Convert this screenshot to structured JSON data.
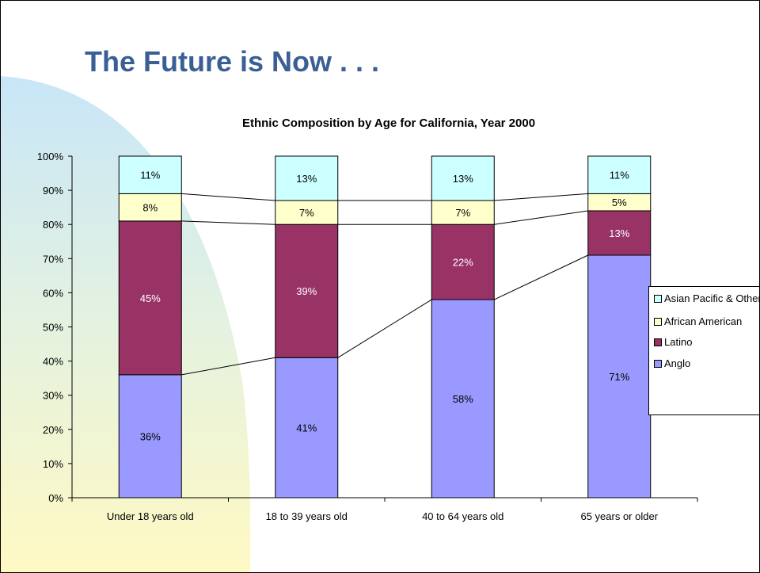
{
  "slide": {
    "title": "The Future is Now . . ."
  },
  "chart_data": {
    "type": "bar",
    "stacked": true,
    "title": "Ethnic Composition by Age for California, Year 2000",
    "categories": [
      "Under 18 years old",
      "18 to 39 years old",
      "40 to 64 years old",
      "65 years or older"
    ],
    "ylim": [
      0,
      100
    ],
    "yticks": [
      "0%",
      "10%",
      "20%",
      "30%",
      "40%",
      "50%",
      "60%",
      "70%",
      "80%",
      "90%",
      "100%"
    ],
    "grid": false,
    "series_lines": true,
    "legend_position": "right",
    "series": [
      {
        "name": "Anglo",
        "values": [
          36,
          41,
          58,
          71
        ],
        "labels": [
          "36%",
          "41%",
          "58%",
          "71%"
        ],
        "color": "#9999ff",
        "label_color": "#000000"
      },
      {
        "name": "Latino",
        "values": [
          45,
          39,
          22,
          13
        ],
        "labels": [
          "45%",
          "39%",
          "22%",
          "13%"
        ],
        "color": "#993366",
        "label_color": "#ffffff"
      },
      {
        "name": "African American",
        "values": [
          8,
          7,
          7,
          5
        ],
        "labels": [
          "8%",
          "7%",
          "7%",
          "5%"
        ],
        "color": "#ffffcc",
        "label_color": "#000000"
      },
      {
        "name": "Asian Pacific & Other",
        "values": [
          11,
          13,
          13,
          11
        ],
        "labels": [
          "11%",
          "13%",
          "13%",
          "11%"
        ],
        "color": "#ccffff",
        "label_color": "#000000"
      }
    ]
  }
}
